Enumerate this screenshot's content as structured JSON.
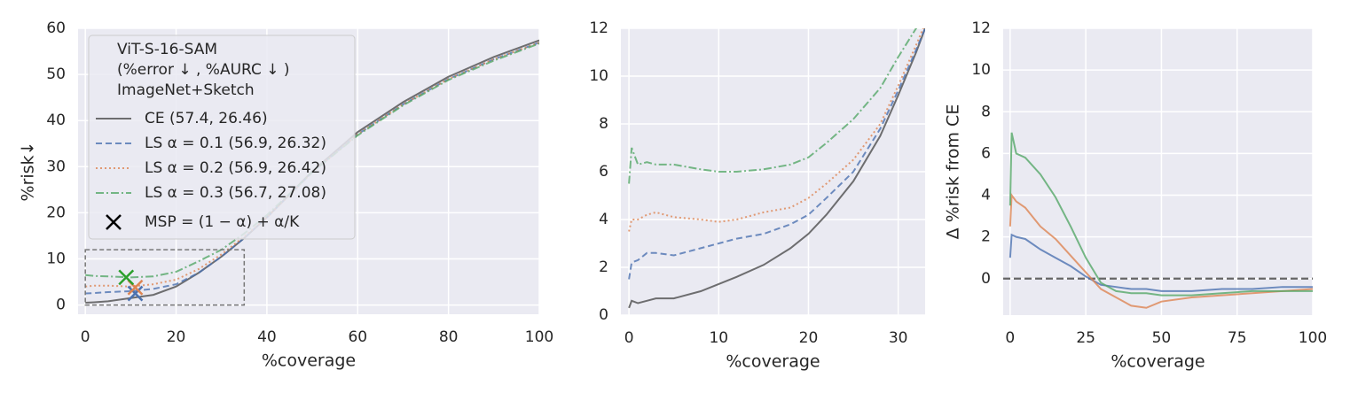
{
  "chart_data": [
    {
      "type": "line",
      "x_label": "%coverage",
      "y_label": "%risk↓",
      "xlim": [
        -1.6,
        100
      ],
      "ylim": [
        -2,
        60
      ],
      "xticks": [
        0,
        20,
        40,
        60,
        80,
        100
      ],
      "yticks": [
        0,
        10,
        20,
        30,
        40,
        50,
        60
      ],
      "grid": true,
      "x": [
        0,
        2,
        5,
        10,
        15,
        20,
        25,
        30,
        35,
        40,
        50,
        60,
        70,
        80,
        90,
        100
      ],
      "legend_title": [
        "ViT-S-16-SAM",
        "(%error ↓ , %AURC ↓ )",
        "ImageNet+Sketch"
      ],
      "legend": "upper left",
      "series": [
        {
          "name": "CE (57.4, 26.46)",
          "color": "#4d4d4d",
          "linestyle": "solid",
          "values": [
            0.5,
            0.6,
            0.8,
            1.5,
            2.2,
            4,
            7,
            10.5,
            14.5,
            19,
            29,
            37.5,
            44,
            49.5,
            53.8,
            57.4
          ]
        },
        {
          "name": "LS α = 0.1 (56.9, 26.32)",
          "color": "#4c72b0",
          "linestyle": "dashed",
          "values": [
            2.5,
            2.6,
            2.8,
            3,
            3.5,
            4.5,
            7,
            10.5,
            14.5,
            19,
            28.8,
            37,
            43.5,
            49,
            53.3,
            56.9
          ]
        },
        {
          "name": "LS α = 0.2 (56.9, 26.42)",
          "color": "#dd8452",
          "linestyle": "dotted",
          "values": [
            4,
            4.2,
            4.2,
            4,
            4.5,
            5.5,
            7.8,
            11,
            14.8,
            19,
            28.8,
            37,
            43.5,
            49,
            53.3,
            56.9
          ]
        },
        {
          "name": "LS α = 0.3 (56.7, 27.08)",
          "color": "#55a868",
          "linestyle": "dashdot",
          "values": [
            6.5,
            6.3,
            6.2,
            6,
            6.2,
            7.2,
            9.5,
            12,
            15.5,
            19.5,
            28.8,
            36.8,
            43.3,
            48.8,
            53,
            56.7
          ]
        }
      ],
      "marker_label": "MSP = (1 − α) + α/K",
      "marker_color": "#000000",
      "markers": [
        {
          "x": 11,
          "y": 2.5,
          "color": "#4c72b0"
        },
        {
          "x": 11,
          "y": 3.8,
          "color": "#dd8452"
        },
        {
          "x": 9,
          "y": 6,
          "color": "#2ca02c"
        }
      ],
      "inset_box": {
        "xlim": [
          0,
          35
        ],
        "ylim": [
          0,
          12
        ]
      }
    },
    {
      "type": "line",
      "x_label": "%coverage",
      "xlim": [
        -0.9,
        33
      ],
      "ylim": [
        0,
        12
      ],
      "xticks": [
        0,
        10,
        20,
        30
      ],
      "yticks": [
        0,
        2,
        4,
        6,
        8,
        10,
        12
      ],
      "grid": true,
      "x": [
        0,
        0.3,
        1,
        2,
        3,
        5,
        8,
        10,
        12,
        15,
        18,
        20,
        22,
        25,
        28,
        30,
        32,
        33
      ],
      "series": [
        {
          "color": "#4d4d4d",
          "linestyle": "solid",
          "values": [
            0.3,
            0.6,
            0.5,
            0.6,
            0.7,
            0.7,
            1.0,
            1.3,
            1.6,
            2.1,
            2.8,
            3.4,
            4.2,
            5.6,
            7.5,
            9.2,
            11,
            12
          ]
        },
        {
          "color": "#4c72b0",
          "linestyle": "dashed",
          "values": [
            1.5,
            2.2,
            2.3,
            2.6,
            2.6,
            2.5,
            2.8,
            3.0,
            3.2,
            3.4,
            3.8,
            4.2,
            4.9,
            6.0,
            7.8,
            9.4,
            11.1,
            12
          ]
        },
        {
          "color": "#dd8452",
          "linestyle": "dotted",
          "values": [
            3.5,
            4.0,
            4.0,
            4.2,
            4.3,
            4.1,
            4.0,
            3.9,
            4.0,
            4.3,
            4.5,
            4.9,
            5.5,
            6.5,
            8.0,
            9.6,
            11.3,
            12.2
          ]
        },
        {
          "color": "#55a868",
          "linestyle": "dashdot",
          "values": [
            5.5,
            7.0,
            6.3,
            6.4,
            6.3,
            6.3,
            6.1,
            6.0,
            6.0,
            6.1,
            6.3,
            6.6,
            7.2,
            8.2,
            9.5,
            10.8,
            12.0,
            12.5
          ]
        }
      ]
    },
    {
      "type": "line",
      "x_label": "%coverage",
      "y_label": "Δ %risk from CE",
      "xlim": [
        -2.3,
        100
      ],
      "ylim": [
        -1.75,
        12
      ],
      "xticks": [
        0,
        25,
        50,
        75,
        100
      ],
      "yticks": [
        0,
        2,
        4,
        6,
        8,
        10,
        12
      ],
      "grid": true,
      "hline": 0,
      "x": [
        0,
        0.5,
        2,
        5,
        10,
        15,
        20,
        25,
        30,
        35,
        40,
        45,
        50,
        60,
        70,
        80,
        90,
        100
      ],
      "series": [
        {
          "color": "#4c72b0",
          "linestyle": "solid",
          "values": [
            1,
            2.1,
            2.0,
            1.9,
            1.4,
            1.0,
            0.6,
            0.1,
            -0.3,
            -0.4,
            -0.5,
            -0.5,
            -0.6,
            -0.6,
            -0.5,
            -0.5,
            -0.4,
            -0.4
          ]
        },
        {
          "color": "#dd8452",
          "linestyle": "solid",
          "values": [
            2.5,
            4.0,
            3.7,
            3.4,
            2.5,
            1.9,
            1.1,
            0.3,
            -0.5,
            -0.9,
            -1.3,
            -1.4,
            -1.1,
            -0.9,
            -0.8,
            -0.7,
            -0.6,
            -0.5
          ]
        },
        {
          "color": "#55a868",
          "linestyle": "solid",
          "values": [
            3.5,
            7.0,
            6.0,
            5.8,
            5.0,
            3.9,
            2.5,
            1.0,
            -0.2,
            -0.6,
            -0.7,
            -0.7,
            -0.8,
            -0.8,
            -0.7,
            -0.6,
            -0.6,
            -0.6
          ]
        }
      ]
    }
  ]
}
